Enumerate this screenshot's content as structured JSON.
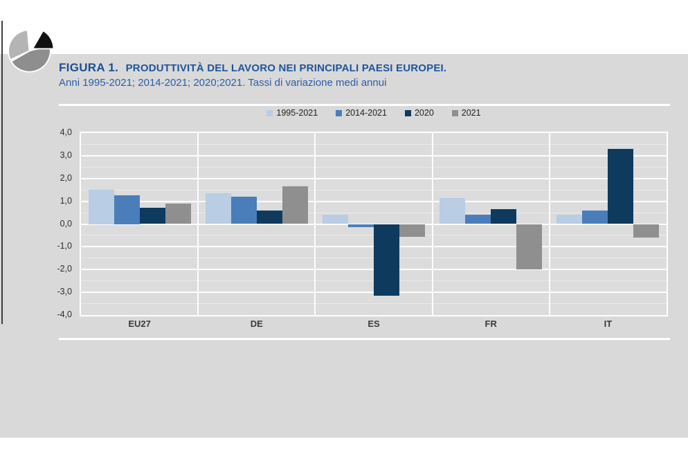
{
  "header": {
    "figure_label": "FIGURA 1.",
    "title": "PRODUTTIVITÀ DEL LAVORO NEI PRINCIPALI PAESI EUROPEI.",
    "subtitle": "Anni 1995-2021; 2014-2021; 2020;2021. Tassi di variazione medi annui"
  },
  "icons": {
    "logo": "pie-chart-logo",
    "logo_colors": {
      "light_slice": "#b4b4b4",
      "dark_slice": "#8e8e8e",
      "black_slice": "#111111"
    }
  },
  "colors": {
    "title_blue": "#1b4e94",
    "subtitle_blue": "#2a5da9",
    "panel_gray": "#d9d9d9",
    "plot_gray": "#dcdcdc",
    "edge_line": "#3e3e3e"
  },
  "chart_data": {
    "type": "bar",
    "title": "PRODUTTIVITÀ DEL LAVORO NEI PRINCIPALI PAESI EUROPEI.",
    "subtitle": "Anni 1995-2021; 2014-2021; 2020;2021. Tassi di variazione medi annui",
    "categories": [
      "EU27",
      "DE",
      "ES",
      "FR",
      "IT"
    ],
    "series": [
      {
        "name": "1995-2021",
        "color": "#b9cde4",
        "values": [
          1.5,
          1.35,
          0.4,
          1.15,
          0.4
        ]
      },
      {
        "name": "2014-2021",
        "color": "#4a7ebb",
        "values": [
          1.25,
          1.2,
          -0.15,
          0.4,
          0.6
        ]
      },
      {
        "name": "2020",
        "color": "#0e3a5e",
        "values": [
          0.7,
          0.6,
          -3.15,
          0.65,
          3.3
        ]
      },
      {
        "name": "2021",
        "color": "#8f8f8f",
        "values": [
          0.9,
          1.65,
          -0.55,
          -2.0,
          -0.6
        ]
      }
    ],
    "ylim": [
      -4.0,
      4.0
    ],
    "ytick_step": 1.0,
    "ytick_labels": [
      "4,0",
      "3,0",
      "2,0",
      "1,0",
      "0,0",
      "-1,0",
      "-2,0",
      "-3,0",
      "-4,0"
    ],
    "grid": "horizontal, white major lines every 1.0, faint minor lines every 0.5",
    "legend_position": "top-center",
    "xlabel": "",
    "ylabel": ""
  }
}
